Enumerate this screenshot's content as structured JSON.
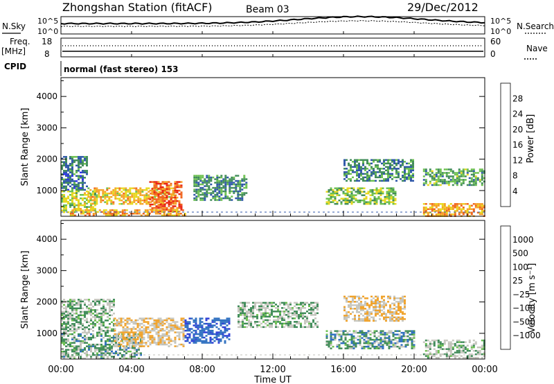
{
  "header": {
    "station": "Zhongshan Station (fitACF)",
    "beam": "Beam 03",
    "date": "29/Dec/2012"
  },
  "top_panels": {
    "sky": {
      "label": "N.Sky",
      "scale_top": "10^5",
      "scale_bottom": "10^0",
      "right_label": "N.Search",
      "right_top": "10^5",
      "right_bottom": "10^0"
    },
    "freq": {
      "label": "Freq.",
      "unit": "[MHz]",
      "top": "18",
      "bottom": "8",
      "right_label": "Nave",
      "right_top": "60",
      "right_bottom": "0"
    },
    "cpid": {
      "label": "CPID",
      "mode": "normal (fast stereo) 153"
    }
  },
  "power_panel": {
    "ylabel": "Slant Range [km]",
    "colorbar_label": "Power [dB]",
    "colorbar_ticks": [
      "28",
      "24",
      "20",
      "16",
      "12",
      "8",
      "4"
    ],
    "colors": [
      "#2e2ef0",
      "#2d56a8",
      "#3f8b58",
      "#6cc04f",
      "#e8d81e",
      "#f5a228",
      "#f0661e",
      "#e82314"
    ]
  },
  "velocity_panel": {
    "ylabel": "Slant Range [km]",
    "colorbar_label": "Velocity [m s⁻¹]",
    "colorbar_ticks": [
      "1000",
      "500",
      "100",
      "25",
      "−25",
      "−100",
      "−500",
      "−1000"
    ],
    "colors": [
      "#2e3fd6",
      "#2e6fc0",
      "#3f8b58",
      "#6cc04f",
      "#c0c0b8",
      "#c8c8c0",
      "#f0a22a",
      "#f07a1e",
      "#e83a1a"
    ]
  },
  "x_axis": {
    "label": "Time UT",
    "ticks": [
      "00:00",
      "04:00",
      "08:00",
      "12:00",
      "16:00",
      "20:00",
      "00:00"
    ]
  },
  "chart_data": [
    {
      "type": "heatmap",
      "title": "Power",
      "xlabel": "Time UT",
      "ylabel": "Slant Range [km]",
      "xlim": [
        0,
        24
      ],
      "ylim": [
        180,
        4600
      ],
      "yticks": [
        1000,
        2000,
        3000,
        4000
      ],
      "colorbar": {
        "label": "Power [dB]",
        "range": [
          0,
          32
        ],
        "ticks": [
          4,
          8,
          12,
          16,
          20,
          24,
          28
        ]
      },
      "echo_regions": [
        {
          "time": [
            0.0,
            1.5
          ],
          "range": [
            1000,
            2100
          ],
          "value": 8
        },
        {
          "time": [
            0.0,
            2.0
          ],
          "range": [
            300,
            1000
          ],
          "value": 16
        },
        {
          "time": [
            1.5,
            6.5
          ],
          "range": [
            600,
            1100
          ],
          "value": 20
        },
        {
          "time": [
            5.0,
            6.8
          ],
          "range": [
            350,
            1300
          ],
          "value": 26
        },
        {
          "time": [
            0.5,
            7.0
          ],
          "range": [
            200,
            400
          ],
          "value": 22
        },
        {
          "time": [
            7.5,
            10.5
          ],
          "range": [
            700,
            1500
          ],
          "value": 10
        },
        {
          "time": [
            15.0,
            19.0
          ],
          "range": [
            600,
            1100
          ],
          "value": 14
        },
        {
          "time": [
            16.0,
            20.0
          ],
          "range": [
            1300,
            2000
          ],
          "value": 10
        },
        {
          "time": [
            20.5,
            24.0
          ],
          "range": [
            200,
            600
          ],
          "value": 22
        },
        {
          "time": [
            20.5,
            24.0
          ],
          "range": [
            1200,
            1700
          ],
          "value": 12
        }
      ]
    },
    {
      "type": "heatmap",
      "title": "Velocity",
      "xlabel": "Time UT",
      "ylabel": "Slant Range [km]",
      "xlim": [
        0,
        24
      ],
      "ylim": [
        180,
        4600
      ],
      "yticks": [
        1000,
        2000,
        3000,
        4000
      ],
      "colorbar": {
        "label": "Velocity [m s⁻¹]",
        "range": [
          -1000,
          1000
        ],
        "ticks": [
          1000,
          500,
          100,
          25,
          -25,
          -100,
          -500,
          -1000
        ]
      },
      "echo_regions": [
        {
          "time": [
            0.0,
            3.0
          ],
          "range": [
            1000,
            2100
          ],
          "value": 0
        },
        {
          "time": [
            0.0,
            4.5
          ],
          "range": [
            200,
            1000
          ],
          "value": 100
        },
        {
          "time": [
            3.0,
            7.0
          ],
          "range": [
            600,
            1500
          ],
          "value": -300
        },
        {
          "time": [
            7.0,
            9.5
          ],
          "range": [
            700,
            1500
          ],
          "value": 600
        },
        {
          "time": [
            10.0,
            14.5
          ],
          "range": [
            1200,
            2000
          ],
          "value": 0
        },
        {
          "time": [
            15.0,
            20.0
          ],
          "range": [
            500,
            1100
          ],
          "value": 150
        },
        {
          "time": [
            16.0,
            19.5
          ],
          "range": [
            1400,
            2200
          ],
          "value": -300
        },
        {
          "time": [
            20.5,
            24.0
          ],
          "range": [
            200,
            800
          ],
          "value": 0
        }
      ]
    }
  ]
}
